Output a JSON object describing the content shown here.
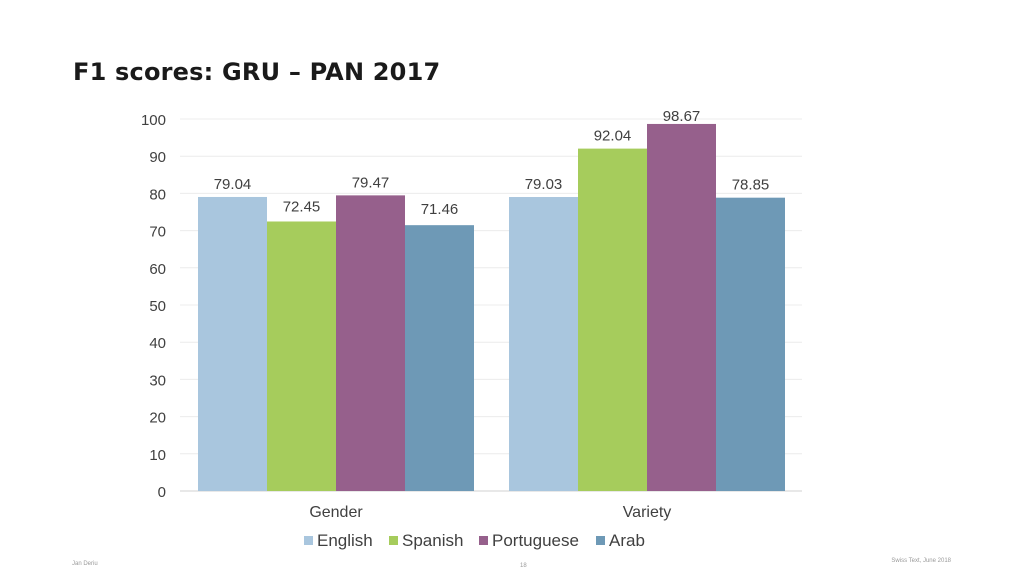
{
  "slide": {
    "title": "F1 scores: GRU – PAN 2017",
    "footer_left": "Jan Deriu",
    "footer_center": "18",
    "footer_right": "Swiss Text, June 2018"
  },
  "chart_data": {
    "type": "bar",
    "title": "",
    "xlabel": "",
    "ylabel": "",
    "categories": [
      "Gender",
      "Variety"
    ],
    "series": [
      {
        "name": "English",
        "values": [
          79.04,
          79.03
        ],
        "color": "#a9c6de"
      },
      {
        "name": "Spanish",
        "values": [
          72.45,
          92.04
        ],
        "color": "#a6cc5c"
      },
      {
        "name": "Portuguese",
        "values": [
          79.47,
          98.67
        ],
        "color": "#96608c"
      },
      {
        "name": "Arab",
        "values": [
          71.46,
          78.85
        ],
        "color": "#6e99b6"
      }
    ],
    "ylim": [
      0,
      100
    ],
    "yticks": [
      0,
      10,
      20,
      30,
      40,
      50,
      60,
      70,
      80,
      90,
      100
    ],
    "data_labels": true,
    "grid": true,
    "legend": "bottom"
  }
}
